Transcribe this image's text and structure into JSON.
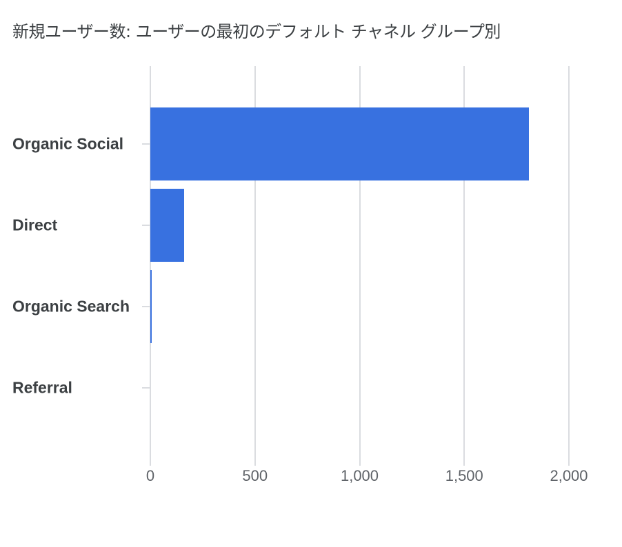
{
  "title": "新規ユーザー数: ユーザーの最初のデフォルト チャネル グループ別",
  "colors": {
    "bar": "#3871e0",
    "grid": "#dadce0",
    "text": "#3c4043",
    "axis_text": "#5f6368"
  },
  "chart_data": {
    "type": "bar",
    "orientation": "horizontal",
    "title": "新規ユーザー数: ユーザーの最初のデフォルト チャネル グループ別",
    "categories": [
      "Organic Social",
      "Direct",
      "Organic Search",
      "Referral"
    ],
    "values": [
      1810,
      161,
      5,
      0
    ],
    "xlabel": "",
    "ylabel": "",
    "xlim": [
      0,
      2000
    ],
    "x_ticks": [
      "0",
      "500",
      "1,000",
      "1,500",
      "2,000"
    ],
    "grid": true,
    "legend": null
  }
}
